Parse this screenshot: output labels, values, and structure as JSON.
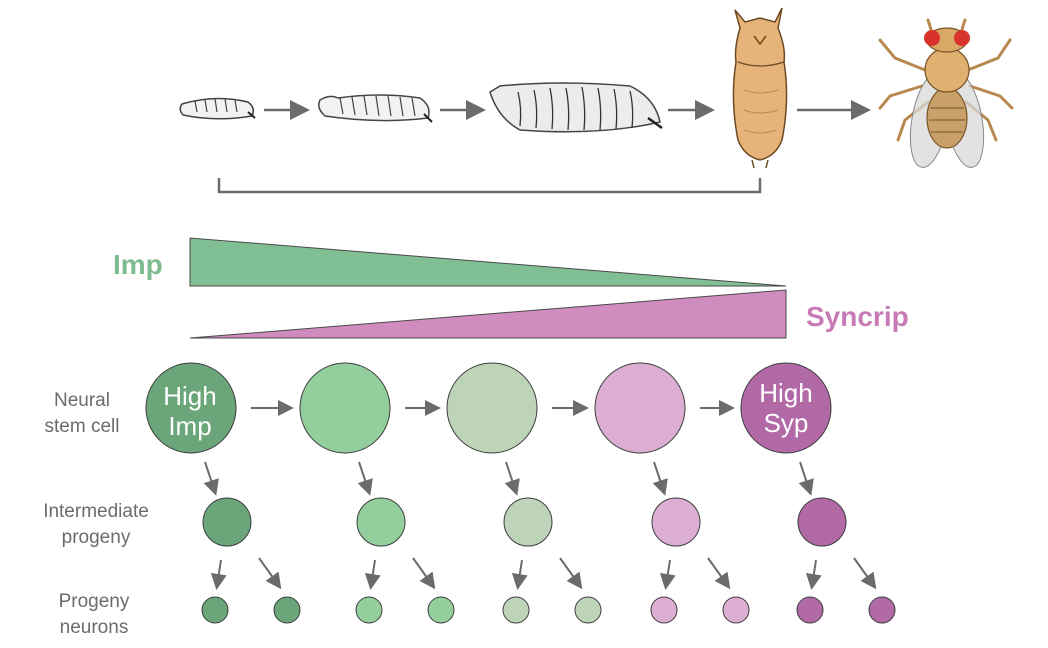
{
  "gradients": {
    "imp": {
      "label": "Imp",
      "color": "#7fbf93",
      "text_color": "#7cbc8e"
    },
    "syncrip": {
      "label": "Syncrip",
      "color": "#d08cbf",
      "text_color": "#c77ab5"
    }
  },
  "rows": {
    "stem": [
      "Neural",
      "stem cell"
    ],
    "intermediate": [
      "Intermediate",
      "progeny"
    ],
    "neurons": [
      "Progeny",
      "neurons"
    ]
  },
  "cells": {
    "first": [
      "High",
      "Imp"
    ],
    "last": [
      "High",
      "Syp"
    ]
  },
  "stage_colors": [
    "#6aa67a",
    "#93cf9d",
    "#bdd4b9",
    "#ddaed3",
    "#b26aa7"
  ],
  "life_stages": [
    "larva-l1",
    "larva-l2",
    "larva-l3",
    "pupa",
    "adult-fly"
  ]
}
